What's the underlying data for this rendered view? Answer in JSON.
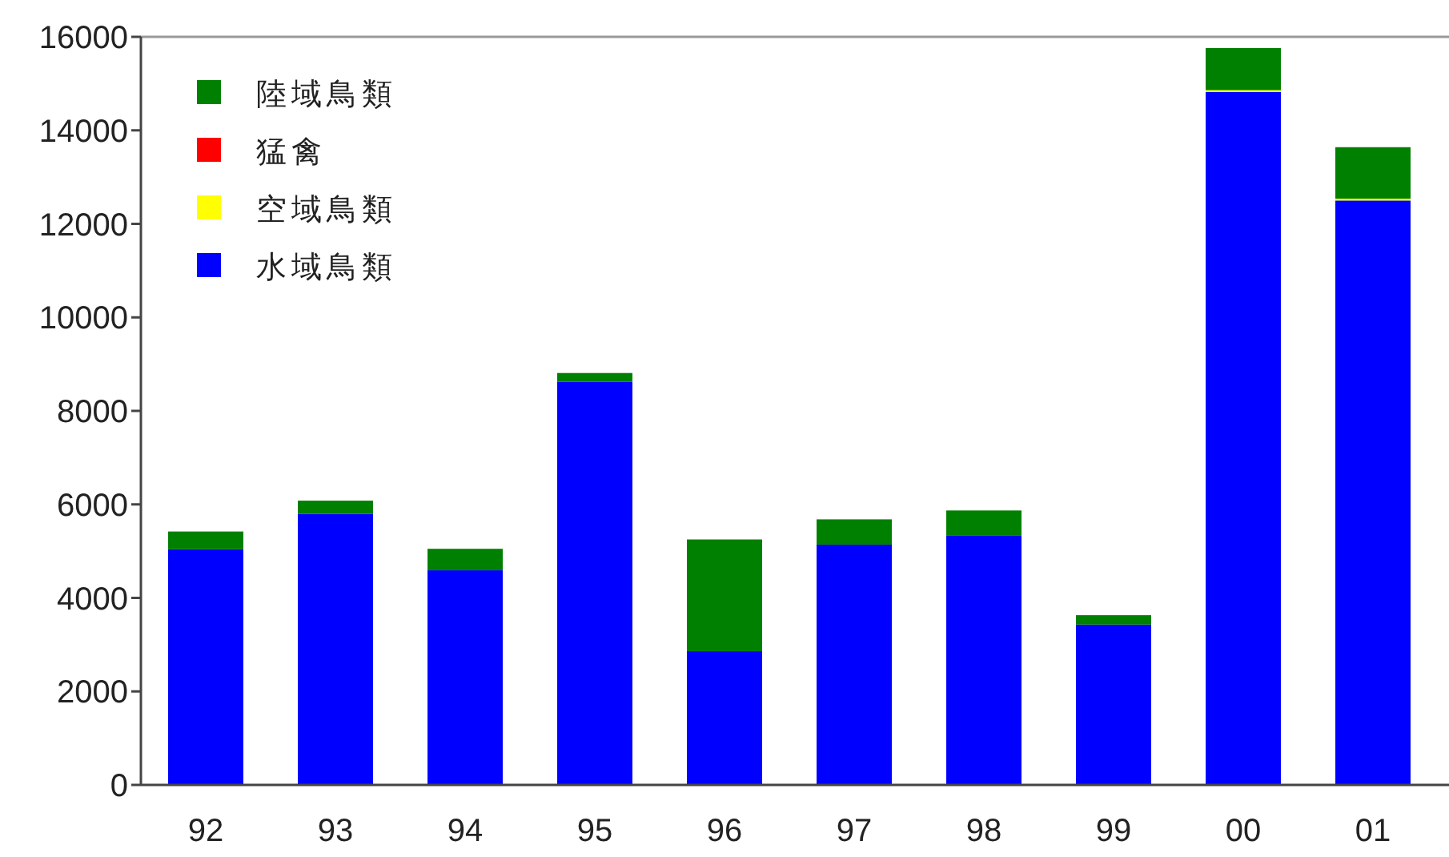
{
  "chart_data": {
    "type": "bar",
    "stacked": true,
    "legend": "top left",
    "categories": [
      "92",
      "93",
      "94",
      "95",
      "96",
      "97",
      "98",
      "99",
      "00",
      "01"
    ],
    "ylim": [
      0,
      16000
    ],
    "yticks": [
      0,
      2000,
      4000,
      6000,
      8000,
      10000,
      12000,
      14000,
      16000
    ],
    "series": [
      {
        "name": "水域鳥類",
        "color": "#0000ff",
        "values": [
          5040,
          5800,
          4590,
          8620,
          2860,
          5140,
          5340,
          3430,
          14820,
          12500
        ]
      },
      {
        "name": "空域鳥類",
        "color": "#ffff00",
        "values": [
          0,
          0,
          0,
          0,
          0,
          0,
          0,
          0,
          40,
          40
        ]
      },
      {
        "name": "猛禽",
        "color": "#ff0000",
        "values": [
          0,
          0,
          0,
          0,
          0,
          0,
          0,
          0,
          0,
          0
        ]
      },
      {
        "name": "陸域鳥類",
        "color": "#008000",
        "values": [
          380,
          280,
          460,
          190,
          2390,
          540,
          530,
          200,
          900,
          1100
        ]
      }
    ]
  }
}
